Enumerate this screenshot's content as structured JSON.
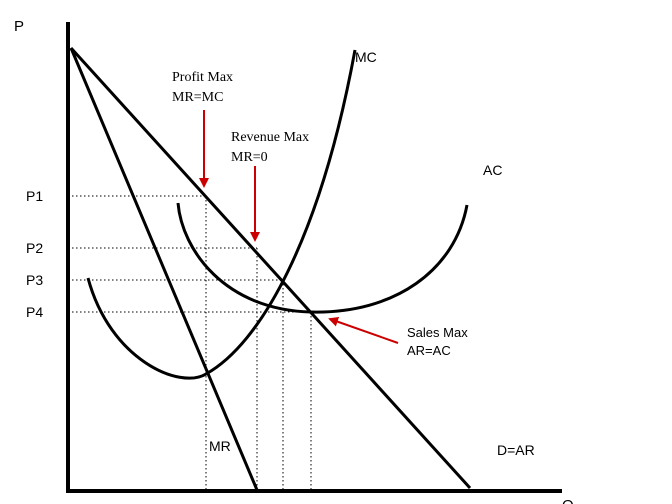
{
  "axes": {
    "y_label": "P",
    "x_label": "Q"
  },
  "price_levels": [
    "P1",
    "P2",
    "P3",
    "P4"
  ],
  "curves": {
    "mc": "MC",
    "ac": "AC",
    "mr": "MR",
    "demand": "D=AR"
  },
  "annotations": {
    "profit_max_title": "Profit Max",
    "profit_max_condition": "MR=MC",
    "revenue_max_title": "Revenue Max",
    "revenue_max_condition": "MR=0",
    "sales_max_title": "Sales Max",
    "sales_max_condition": "AR=AC"
  },
  "colors": {
    "curve": "#000000",
    "arrow": "#cc0000",
    "guide": "#000000"
  }
}
